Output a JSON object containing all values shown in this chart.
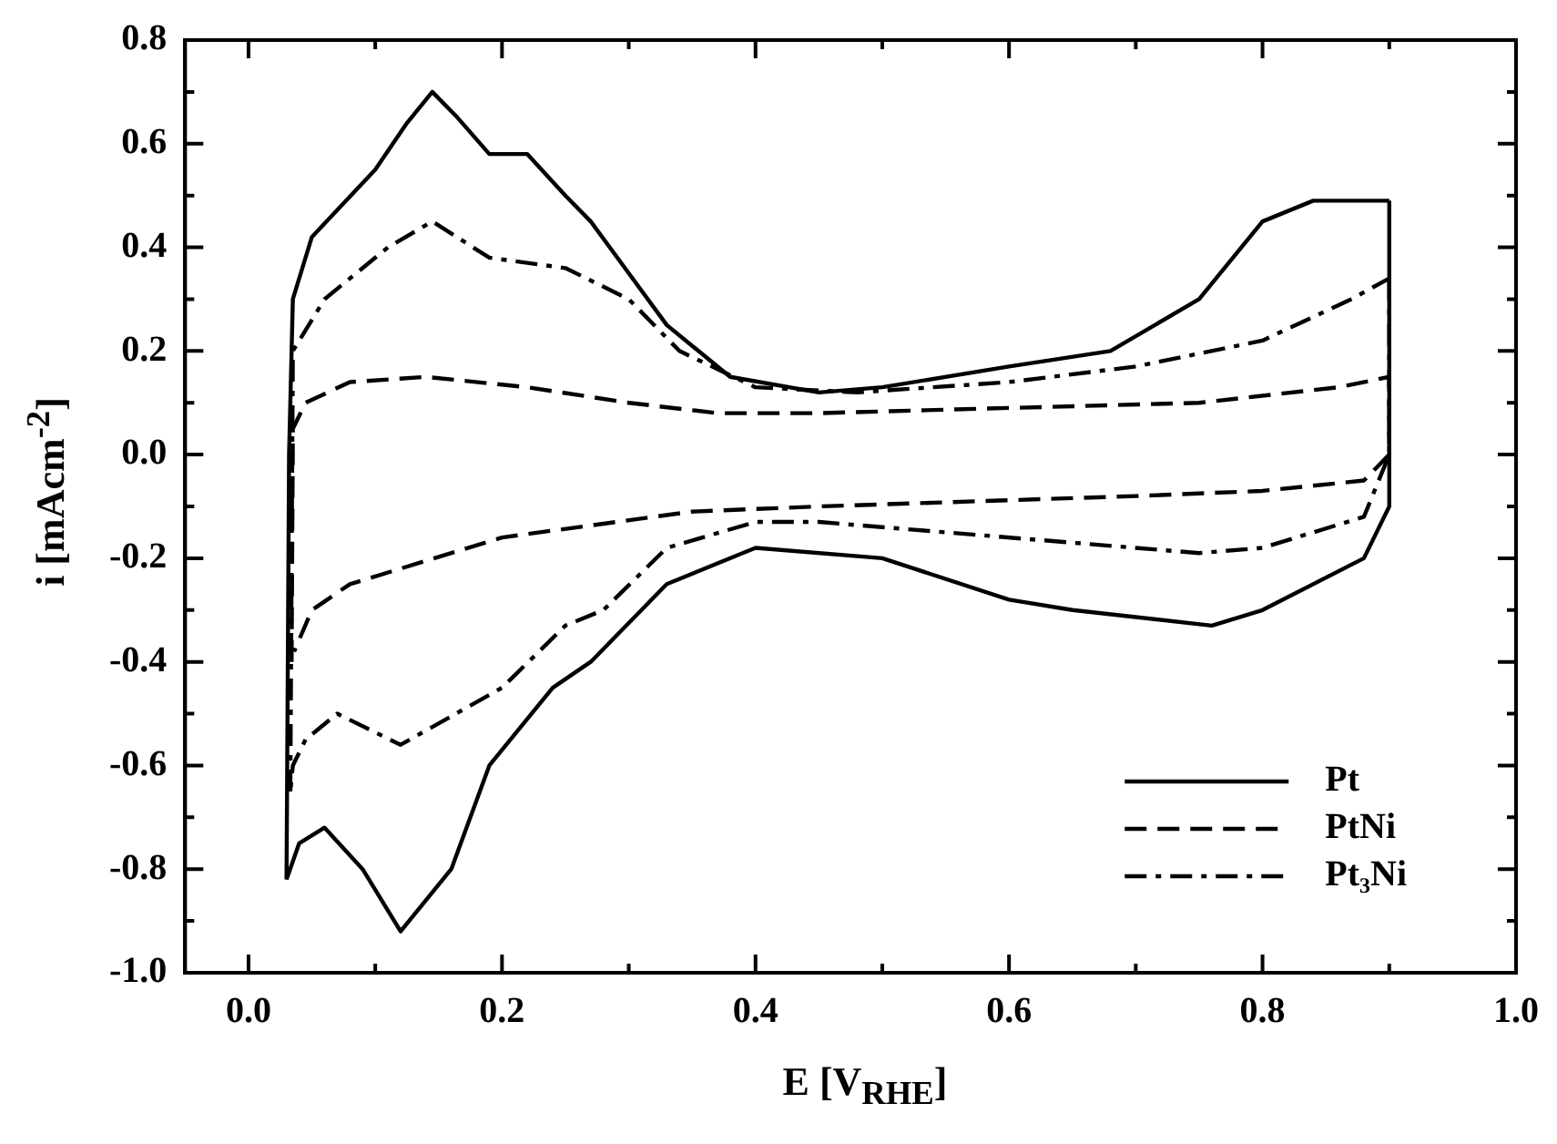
{
  "chart_data": {
    "type": "line",
    "xlabel": "E [V$_{RHE}$]",
    "ylabel": "i [mAcm$^{-2}$]",
    "xlim": [
      -0.05,
      1.0
    ],
    "ylim": [
      -1.0,
      0.8
    ],
    "xticks": [
      {
        "value": 0,
        "label": "0.0"
      },
      {
        "value": 0.1,
        "label": null
      },
      {
        "value": 0.2,
        "label": "0.2"
      },
      {
        "value": 0.3,
        "label": null
      },
      {
        "value": 0.4,
        "label": "0.4"
      },
      {
        "value": 0.5,
        "label": null
      },
      {
        "value": 0.6,
        "label": "0.6"
      },
      {
        "value": 0.7,
        "label": null
      },
      {
        "value": 0.8,
        "label": "0.8"
      },
      {
        "value": 0.9,
        "label": null
      },
      {
        "value": 1.0,
        "label": "1.0"
      }
    ],
    "yticks": [
      {
        "value": -1.0,
        "label": "-1.0"
      },
      {
        "value": -0.9,
        "label": null
      },
      {
        "value": -0.8,
        "label": "-0.8"
      },
      {
        "value": -0.7,
        "label": null
      },
      {
        "value": -0.6,
        "label": "-0.6"
      },
      {
        "value": -0.5,
        "label": null
      },
      {
        "value": -0.4,
        "label": "-0.4"
      },
      {
        "value": -0.3,
        "label": null
      },
      {
        "value": -0.2,
        "label": "-0.2"
      },
      {
        "value": -0.1,
        "label": null
      },
      {
        "value": 0,
        "label": "0.0"
      },
      {
        "value": 0.1,
        "label": null
      },
      {
        "value": 0.2,
        "label": "0.2"
      },
      {
        "value": 0.3,
        "label": null
      },
      {
        "value": 0.4,
        "label": "0.4"
      },
      {
        "value": 0.5,
        "label": null
      },
      {
        "value": 0.6,
        "label": "0.6"
      },
      {
        "value": 0.7,
        "label": null
      },
      {
        "value": 0.8,
        "label": "0.8"
      }
    ],
    "grid": false,
    "legend": "bottom right",
    "marker": "none",
    "series": [
      {
        "name": "Pt",
        "color": "#000000",
        "line_style": "solid",
        "x": [
          0.03,
          0.032,
          0.035,
          0.05,
          0.1,
          0.125,
          0.145,
          0.165,
          0.19,
          0.22,
          0.25,
          0.27,
          0.3,
          0.33,
          0.38,
          0.45,
          0.5,
          0.6,
          0.68,
          0.75,
          0.8,
          0.84,
          0.9
        ],
        "values": [
          -0.82,
          0.0,
          0.3,
          0.42,
          0.55,
          0.64,
          0.7,
          0.65,
          0.58,
          0.58,
          0.5,
          0.45,
          0.35,
          0.25,
          0.15,
          0.12,
          0.13,
          0.17,
          0.2,
          0.3,
          0.45,
          0.49,
          0.49
        ]
      },
      {
        "name": "PtNi",
        "color": "#000000",
        "line_style": "dashed",
        "x": [
          0.034,
          0.035,
          0.045,
          0.08,
          0.14,
          0.22,
          0.3,
          0.37,
          0.45,
          0.6,
          0.75,
          0.86,
          0.9,
          0.9
        ],
        "values": [
          -0.4,
          0.05,
          0.1,
          0.14,
          0.15,
          0.13,
          0.1,
          0.08,
          0.08,
          0.09,
          0.1,
          0.13,
          0.15,
          0.02
        ]
      },
      {
        "name": "Pt₃Ni",
        "color": "#000000",
        "line_style": "dashdot",
        "x": [
          0.033,
          0.035,
          0.06,
          0.11,
          0.145,
          0.19,
          0.25,
          0.3,
          0.34,
          0.4,
          0.48,
          0.6,
          0.7,
          0.8,
          0.87,
          0.9
        ],
        "values": [
          -0.65,
          0.2,
          0.3,
          0.4,
          0.45,
          0.38,
          0.36,
          0.3,
          0.2,
          0.13,
          0.12,
          0.14,
          0.17,
          0.22,
          0.3,
          0.34
        ]
      },
      {
        "color": "#000000",
        "line_style": "solid",
        "x": [
          0.9,
          0.9,
          0.88,
          0.8,
          0.76,
          0.65,
          0.6,
          0.5,
          0.4,
          0.33,
          0.27,
          0.24,
          0.19,
          0.16,
          0.12,
          0.09,
          0.06,
          0.04,
          0.03
        ],
        "values": [
          0.49,
          -0.1,
          -0.2,
          -0.3,
          -0.33,
          -0.3,
          -0.28,
          -0.2,
          -0.18,
          -0.25,
          -0.4,
          -0.45,
          -0.6,
          -0.8,
          -0.92,
          -0.8,
          -0.72,
          -0.75,
          -0.82
        ]
      },
      {
        "color": "#000000",
        "line_style": "dashed",
        "x": [
          0.9,
          0.88,
          0.8,
          0.7,
          0.45,
          0.35,
          0.2,
          0.12,
          0.08,
          0.05,
          0.036
        ],
        "values": [
          0.0,
          -0.05,
          -0.07,
          -0.08,
          -0.1,
          -0.11,
          -0.16,
          -0.22,
          -0.25,
          -0.3,
          -0.38
        ]
      },
      {
        "color": "#000000",
        "line_style": "dashdot",
        "x": [
          0.9,
          0.9,
          0.88,
          0.8,
          0.75,
          0.65,
          0.55,
          0.45,
          0.4,
          0.33,
          0.28,
          0.25,
          0.2,
          0.12,
          0.07,
          0.045,
          0.035,
          0.033
        ],
        "values": [
          0.34,
          0.0,
          -0.12,
          -0.18,
          -0.19,
          -0.17,
          -0.15,
          -0.13,
          -0.13,
          -0.18,
          -0.3,
          -0.33,
          -0.45,
          -0.56,
          -0.5,
          -0.55,
          -0.6,
          -0.65
        ]
      }
    ]
  }
}
